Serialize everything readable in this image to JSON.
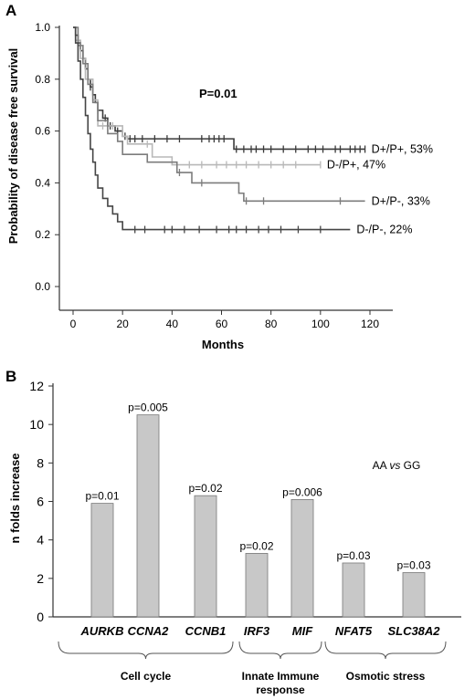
{
  "panel_a": {
    "panel_label": "A"
  },
  "panel_b": {
    "panel_label": "B"
  },
  "chart_data": [
    {
      "type": "line",
      "title": "",
      "xlabel": "Months",
      "ylabel": "Probability of disease free survival",
      "xlim": [
        0,
        120
      ],
      "ylim": [
        0,
        1.0
      ],
      "xticks": [
        0,
        20,
        40,
        60,
        80,
        100,
        120
      ],
      "yticks": [
        "0.0",
        "0.2",
        "0.4",
        "0.6",
        "0.8",
        "1.0"
      ],
      "annotation": "P=0.01",
      "grid": false,
      "series": [
        {
          "name": "D+/P+, 53%",
          "color": "#3a3a3a",
          "steps": [
            [
              0,
              1.0
            ],
            [
              1,
              0.97
            ],
            [
              2,
              0.94
            ],
            [
              3,
              0.91
            ],
            [
              4,
              0.88
            ],
            [
              5,
              0.84
            ],
            [
              6,
              0.8
            ],
            [
              7,
              0.77
            ],
            [
              8,
              0.74
            ],
            [
              9,
              0.71
            ],
            [
              10,
              0.68
            ],
            [
              12,
              0.65
            ],
            [
              14,
              0.62
            ],
            [
              17,
              0.6
            ],
            [
              20,
              0.58
            ],
            [
              22,
              0.57
            ],
            [
              65,
              0.55
            ],
            [
              65,
              0.53
            ],
            [
              118,
              0.53
            ]
          ],
          "censored": [
            4,
            7,
            10,
            13,
            15,
            18,
            21,
            23,
            25,
            28,
            33,
            38,
            43,
            52,
            55,
            57,
            59,
            61,
            66,
            69,
            72,
            74,
            77,
            80,
            85,
            90,
            95,
            98,
            101,
            106,
            108,
            112,
            114,
            116,
            118
          ],
          "end": 118
        },
        {
          "name": "D-/P+, 47%",
          "color": "#b8b8b8",
          "steps": [
            [
              0,
              1.0
            ],
            [
              1,
              0.95
            ],
            [
              3,
              0.88
            ],
            [
              5,
              0.8
            ],
            [
              8,
              0.72
            ],
            [
              10,
              0.62
            ],
            [
              20,
              0.58
            ],
            [
              22,
              0.55
            ],
            [
              32,
              0.5
            ],
            [
              40,
              0.47
            ],
            [
              100,
              0.47
            ]
          ],
          "censored": [
            2,
            6,
            12,
            16,
            30,
            47,
            52,
            58,
            62,
            66,
            70,
            75,
            80,
            85,
            90,
            100
          ],
          "end": 100
        },
        {
          "name": "D+/P-, 33%",
          "color": "#7c7c7c",
          "steps": [
            [
              0,
              1.0
            ],
            [
              2,
              0.93
            ],
            [
              4,
              0.86
            ],
            [
              6,
              0.78
            ],
            [
              8,
              0.71
            ],
            [
              10,
              0.64
            ],
            [
              14,
              0.59
            ],
            [
              18,
              0.56
            ],
            [
              20,
              0.51
            ],
            [
              30,
              0.48
            ],
            [
              42,
              0.44
            ],
            [
              48,
              0.4
            ],
            [
              67,
              0.36
            ],
            [
              69,
              0.33
            ],
            [
              118,
              0.33
            ]
          ],
          "censored": [
            3,
            5,
            43,
            52,
            70,
            77,
            108
          ],
          "end": 118
        },
        {
          "name": "D-/P-, 22%",
          "color": "#454545",
          "steps": [
            [
              0,
              1.0
            ],
            [
              1,
              0.94
            ],
            [
              2,
              0.87
            ],
            [
              3,
              0.8
            ],
            [
              4,
              0.73
            ],
            [
              5,
              0.66
            ],
            [
              6,
              0.59
            ],
            [
              7,
              0.53
            ],
            [
              8,
              0.48
            ],
            [
              9,
              0.43
            ],
            [
              10,
              0.38
            ],
            [
              12,
              0.34
            ],
            [
              14,
              0.31
            ],
            [
              16,
              0.28
            ],
            [
              18,
              0.25
            ],
            [
              20,
              0.22
            ],
            [
              112,
              0.22
            ]
          ],
          "censored": [
            25,
            29,
            37,
            40,
            45,
            51,
            58,
            63,
            66,
            70,
            75,
            79,
            84,
            91,
            100
          ],
          "end": 112
        }
      ]
    },
    {
      "type": "bar",
      "title": "",
      "xlabel": "",
      "ylabel": "n folds increase",
      "ylim": [
        0,
        12
      ],
      "yticks": [
        0,
        2,
        4,
        6,
        8,
        10,
        12
      ],
      "annotation_parts": [
        "AA ",
        "vs",
        " GG"
      ],
      "categories": [
        "AURKB",
        "CCNA2",
        "CCNB1",
        "IRF3",
        "MIF",
        "NFAT5",
        "SLC38A2"
      ],
      "values": [
        5.9,
        10.5,
        6.3,
        3.3,
        6.1,
        2.8,
        2.3
      ],
      "labels": [
        "p=0.01",
        "p=0.005",
        "p=0.02",
        "p=0.02",
        "p=0.006",
        "p=0.03",
        "p=0.03"
      ],
      "bar_color": "#c8c8c8",
      "groups": [
        {
          "label_lines": [
            "Cell cycle"
          ],
          "members": [
            "AURKB",
            "CCNA2",
            "CCNB1"
          ]
        },
        {
          "label_lines": [
            "Innate Immune",
            "response"
          ],
          "members": [
            "IRF3",
            "MIF"
          ]
        },
        {
          "label_lines": [
            "Osmotic stress"
          ],
          "members": [
            "NFAT5",
            "SLC38A2"
          ]
        }
      ]
    }
  ]
}
